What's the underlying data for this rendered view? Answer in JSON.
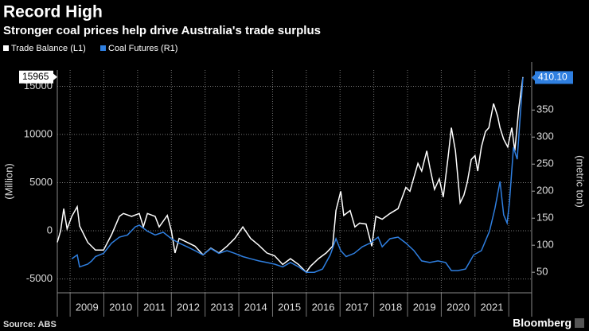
{
  "chart_data": {
    "type": "line",
    "title": "Record High",
    "subtitle": "Stronger coal prices help drive Australia's trade surplus",
    "ylabel": "(Million)",
    "y2label": "(metric ton)",
    "source": "Source: ABS",
    "brand": "Bloomberg",
    "xlim": [
      2008.62,
      2022.68
    ],
    "xticks": [
      2009,
      2010,
      2011,
      2012,
      2013,
      2014,
      2015,
      2016,
      2017,
      2018,
      2019,
      2020,
      2021
    ],
    "ylim": [
      -6440,
      16690
    ],
    "yticks": [
      -5000,
      0,
      5000,
      10000,
      15000
    ],
    "y2lim": [
      12,
      424
    ],
    "y2ticks": [
      50,
      100,
      150,
      200,
      250,
      300,
      350
    ],
    "grid": true,
    "series": [
      {
        "name": "Trade Balance (L1)",
        "color": "#ffffff",
        "axis": "y",
        "x": [
          2008.62,
          2008.72,
          2008.81,
          2008.91,
          2009.05,
          2009.21,
          2009.28,
          2009.52,
          2009.75,
          2009.99,
          2010.23,
          2010.46,
          2010.58,
          2010.82,
          2011.05,
          2011.17,
          2011.29,
          2011.52,
          2011.64,
          2011.88,
          2012.0,
          2012.11,
          2012.23,
          2012.47,
          2012.7,
          2012.94,
          2013.17,
          2013.41,
          2013.65,
          2013.88,
          2014.12,
          2014.35,
          2014.59,
          2014.83,
          2015.06,
          2015.3,
          2015.53,
          2015.77,
          2016.0,
          2016.12,
          2016.36,
          2016.59,
          2016.78,
          2016.88,
          2017.02,
          2017.11,
          2017.3,
          2017.44,
          2017.58,
          2017.77,
          2017.94,
          2018.06,
          2018.25,
          2018.48,
          2018.72,
          2018.95,
          2019.07,
          2019.31,
          2019.42,
          2019.57,
          2019.66,
          2019.8,
          2019.94,
          2020.06,
          2020.2,
          2020.3,
          2020.42,
          2020.56,
          2020.67,
          2020.77,
          2020.89,
          2021.0,
          2021.08,
          2021.19,
          2021.31,
          2021.41,
          2021.55,
          2021.67,
          2021.74,
          2021.85,
          2021.97,
          2022.09,
          2022.18,
          2022.3,
          2022.42
        ],
        "values": [
          -1200,
          0,
          2300,
          200,
          1500,
          2500,
          500,
          -1200,
          -2000,
          -2000,
          -400,
          1500,
          1800,
          1500,
          1800,
          400,
          1800,
          1500,
          400,
          1600,
          0,
          -2300,
          -800,
          -1200,
          -1600,
          -2500,
          -1800,
          -2300,
          -1600,
          -800,
          400,
          -800,
          -1500,
          -2300,
          -2600,
          -3500,
          -2900,
          -3500,
          -4300,
          -3700,
          -2900,
          -2300,
          -1600,
          2100,
          4100,
          1600,
          2100,
          400,
          800,
          700,
          -1600,
          1500,
          1200,
          1800,
          2300,
          4500,
          4100,
          7000,
          6200,
          8300,
          6600,
          4300,
          5400,
          3500,
          7600,
          10700,
          8300,
          2900,
          3700,
          5000,
          7400,
          7800,
          6200,
          8700,
          10300,
          10700,
          13200,
          11900,
          10700,
          9500,
          8700,
          10700,
          8300,
          12800,
          15965
        ]
      },
      {
        "name": "Coal Futures (R1)",
        "color": "#2f7fe0",
        "axis": "y2",
        "end_label": "410.10",
        "x": [
          2009.05,
          2009.21,
          2009.28,
          2009.52,
          2009.64,
          2009.75,
          2009.99,
          2010.23,
          2010.46,
          2010.7,
          2010.93,
          2011.05,
          2011.29,
          2011.52,
          2011.76,
          2012.0,
          2012.23,
          2012.47,
          2012.7,
          2012.94,
          2013.17,
          2013.41,
          2013.65,
          2013.88,
          2014.12,
          2014.35,
          2014.59,
          2014.83,
          2015.06,
          2015.3,
          2015.53,
          2015.77,
          2016.0,
          2016.24,
          2016.48,
          2016.71,
          2016.88,
          2017.02,
          2017.18,
          2017.42,
          2017.66,
          2017.89,
          2018.13,
          2018.25,
          2018.48,
          2018.72,
          2018.95,
          2019.19,
          2019.42,
          2019.66,
          2019.9,
          2020.13,
          2020.3,
          2020.49,
          2020.72,
          2020.96,
          2021.19,
          2021.43,
          2021.59,
          2021.74,
          2021.85,
          2021.95,
          2022.02,
          2022.14,
          2022.25,
          2022.42
        ],
        "values": [
          75,
          82,
          60,
          65,
          71,
          79,
          85,
          104,
          115,
          119,
          134,
          137,
          126,
          119,
          124,
          112,
          104,
          97,
          90,
          82,
          94,
          85,
          90,
          85,
          79,
          75,
          71,
          68,
          65,
          60,
          68,
          60,
          50,
          50,
          56,
          82,
          112,
          90,
          79,
          85,
          97,
          104,
          115,
          97,
          112,
          115,
          104,
          90,
          71,
          68,
          71,
          68,
          53,
          53,
          56,
          82,
          90,
          126,
          168,
          218,
          156,
          141,
          178,
          281,
          259,
          410.1
        ]
      }
    ]
  }
}
